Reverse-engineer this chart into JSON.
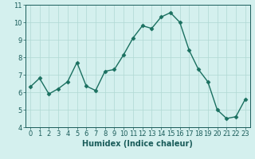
{
  "x": [
    0,
    1,
    2,
    3,
    4,
    5,
    6,
    7,
    8,
    9,
    10,
    11,
    12,
    13,
    14,
    15,
    16,
    17,
    18,
    19,
    20,
    21,
    22,
    23
  ],
  "y": [
    6.3,
    6.8,
    5.9,
    6.2,
    6.6,
    7.7,
    6.35,
    6.1,
    7.2,
    7.3,
    8.15,
    9.1,
    9.8,
    9.65,
    10.3,
    10.55,
    10.0,
    8.4,
    7.3,
    6.6,
    5.0,
    4.5,
    4.6,
    5.6
  ],
  "line_color": "#1a7060",
  "marker": "D",
  "markersize": 2.5,
  "linewidth": 1.0,
  "bg_color": "#d4f0ee",
  "grid_color": "#b0d8d4",
  "xlabel": "Humidex (Indice chaleur)",
  "xlim": [
    -0.5,
    23.5
  ],
  "ylim": [
    4,
    11
  ],
  "yticks": [
    4,
    5,
    6,
    7,
    8,
    9,
    10,
    11
  ],
  "xticks": [
    0,
    1,
    2,
    3,
    4,
    5,
    6,
    7,
    8,
    9,
    10,
    11,
    12,
    13,
    14,
    15,
    16,
    17,
    18,
    19,
    20,
    21,
    22,
    23
  ],
  "tick_color": "#1a5c5a",
  "label_fontsize": 6.0,
  "axis_fontsize": 7.0,
  "ylabel_fontsize": 6.0
}
